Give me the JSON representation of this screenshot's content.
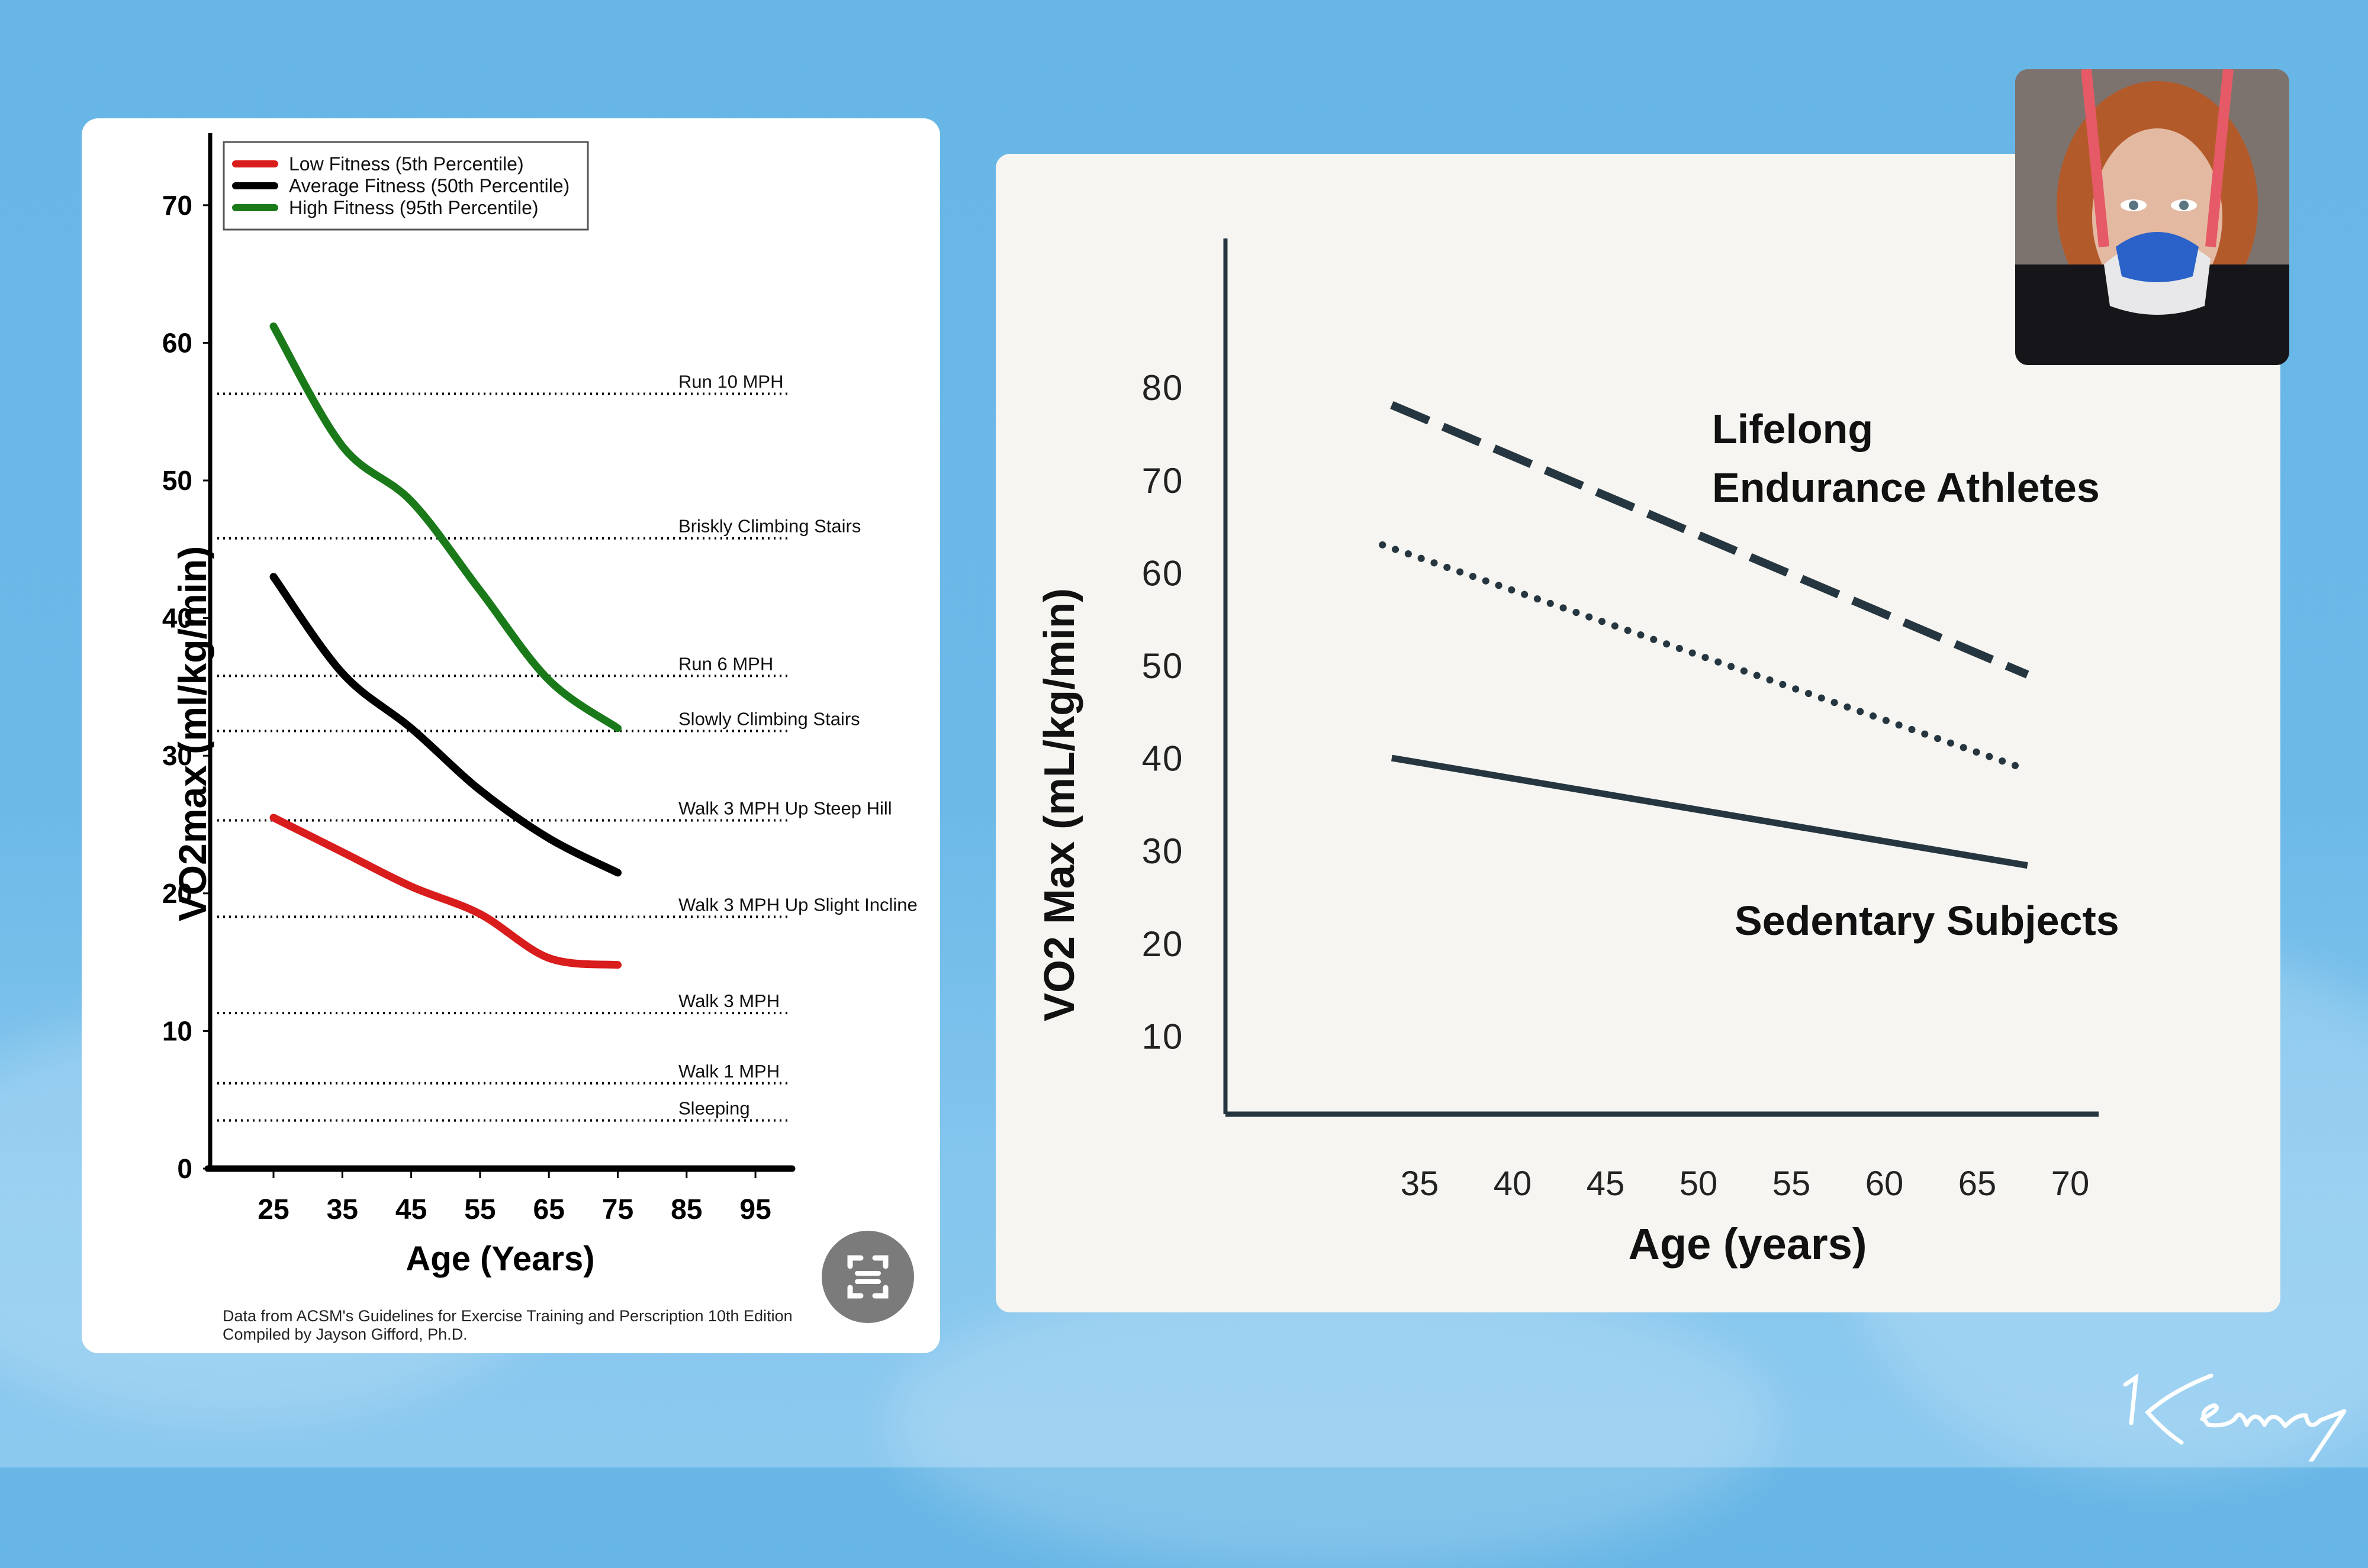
{
  "left_chart_footnote": {
    "line1": "Data from ACSM's Guidelines for Exercise Training and Perscription 10th Edition",
    "line2": "Compiled by Jayson Gifford, Ph.D."
  },
  "scan_button": {
    "icon": "scan-text-icon"
  },
  "signature": {
    "text": "Kenny"
  },
  "photo": {
    "description": "athlete wearing VO2 max testing mask"
  },
  "colors": {
    "background": "#6cb9e8",
    "low_fitness": "#d91c1c",
    "average_fitness": "#000000",
    "high_fitness": "#1a7a1a",
    "right_chart_lines": "#263640"
  },
  "chart_data": [
    {
      "type": "line",
      "title": "",
      "xlabel": "Age (Years)",
      "ylabel": "VO2max (ml/kg/min)",
      "xlim": [
        16,
        100
      ],
      "ylim": [
        0,
        75
      ],
      "x_ticks": [
        25,
        35,
        45,
        55,
        65,
        75,
        85,
        95
      ],
      "y_ticks": [
        0,
        10,
        20,
        30,
        40,
        50,
        60,
        70
      ],
      "grid": false,
      "legend_position": "top-left",
      "x": [
        25,
        35,
        45,
        55,
        65,
        75
      ],
      "series": [
        {
          "name": "Low Fitness (5th Percentile)",
          "color": "#d91c1c",
          "values": [
            25.5,
            23.0,
            20.5,
            18.5,
            15.3,
            14.8
          ]
        },
        {
          "name": "Average Fitness (50th Percentile)",
          "color": "#000000",
          "values": [
            43.0,
            36.0,
            32.0,
            27.5,
            24.0,
            21.5
          ]
        },
        {
          "name": "High Fitness (95th Percentile)",
          "color": "#1a7a1a",
          "values": [
            61.2,
            52.5,
            48.5,
            42.0,
            35.5,
            32.0
          ]
        }
      ],
      "reference_lines": [
        {
          "label": "Run 10 MPH",
          "value": 56.3
        },
        {
          "label": "Briskly Climbing Stairs",
          "value": 45.8
        },
        {
          "label": "Run 6 MPH",
          "value": 35.8
        },
        {
          "label": "Slowly Climbing Stairs",
          "value": 31.8
        },
        {
          "label": "Walk 3 MPH Up Steep Hill",
          "value": 25.3
        },
        {
          "label": "Walk 3 MPH Up Slight Incline",
          "value": 18.3
        },
        {
          "label": "Walk 3 MPH",
          "value": 11.3
        },
        {
          "label": "Walk 1 MPH",
          "value": 6.2
        },
        {
          "label": "Sleeping",
          "value": 3.5
        }
      ]
    },
    {
      "type": "line",
      "title": "",
      "xlabel": "Age (years)",
      "ylabel": "VO2 Max (mL/kg/min)",
      "xlim": [
        27,
        71
      ],
      "ylim": [
        0,
        88
      ],
      "x_ticks": [
        35,
        40,
        45,
        50,
        55,
        60,
        65,
        70
      ],
      "y_ticks": [
        10,
        20,
        30,
        40,
        50,
        60,
        70,
        80
      ],
      "grid": false,
      "series": [
        {
          "name": "Lifelong Endurance Athletes",
          "style": "dashed",
          "x": [
            33.5,
            67.7
          ],
          "values": [
            78.2,
            49.1
          ]
        },
        {
          "name": "(unlabeled middle group)",
          "style": "dotted",
          "x": [
            33.0,
            67.3
          ],
          "values": [
            63.1,
            39.1
          ]
        },
        {
          "name": "Sedentary Subjects",
          "style": "solid",
          "x": [
            33.5,
            67.7
          ],
          "values": [
            40.1,
            28.5
          ]
        }
      ],
      "annotations": [
        {
          "text_line1": "Lifelong",
          "text_line2": "Endurance Athletes"
        },
        {
          "text_line1": "Sedentary Subjects"
        }
      ]
    }
  ]
}
